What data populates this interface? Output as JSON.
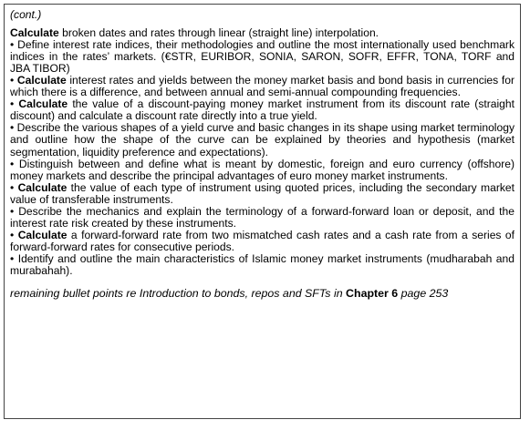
{
  "cont_label": "(cont.)",
  "lead": {
    "bold": "Calculate",
    "text": " broken dates and rates through linear (straight line) interpolation."
  },
  "bullets": [
    {
      "bold": "",
      "text": "Define interest rate indices, their methodologies and outline the most internationally used benchmark indices in the rates’ markets. (€STR, EURIBOR, SONIA, SARON, SOFR, EFFR, TONA, TORF and JBA TIBOR)"
    },
    {
      "bold": "Calculate",
      "text": " interest rates and yields between the money market basis and bond basis in currencies for which there is a difference, and between annual and semi-annual compounding frequencies."
    },
    {
      "bold": "Calculate",
      "text": " the value of a discount-paying money market instrument from its discount rate (straight discount) and calculate a discount rate directly into a true yield."
    },
    {
      "bold": "",
      "text": "Describe the various shapes of a yield curve and basic changes in its shape using market terminology and outline how the shape of the curve can be explained by theories and hypothesis (market segmentation, liquidity preference and expectations)."
    },
    {
      "bold": "",
      "text": "Distinguish between and define what is meant by domestic, foreign and euro currency (offshore) money markets and describe the principal advantages of euro money market instruments."
    },
    {
      "bold": "Calculate",
      "text": " the value of each type of instrument using quoted prices, including the secondary market value of transferable instruments."
    },
    {
      "bold": "",
      "text": "Describe the mechanics and explain the terminology of a forward-forward loan or deposit, and the interest rate risk created by these instruments."
    },
    {
      "bold": "Calculate",
      "text": " a forward-forward rate from two mismatched cash rates and a cash rate from a series of forward-forward rates for consecutive periods."
    },
    {
      "bold": "",
      "text": "Identify and outline the main characteristics of Islamic money market instruments (mudharabah and murabahah)."
    }
  ],
  "bullet_char": "•",
  "footer": {
    "text": "remaining bullet points re Introduction to bonds, repos and SFTs in ",
    "bold": "Chapter 6",
    "tail": " page 253"
  }
}
